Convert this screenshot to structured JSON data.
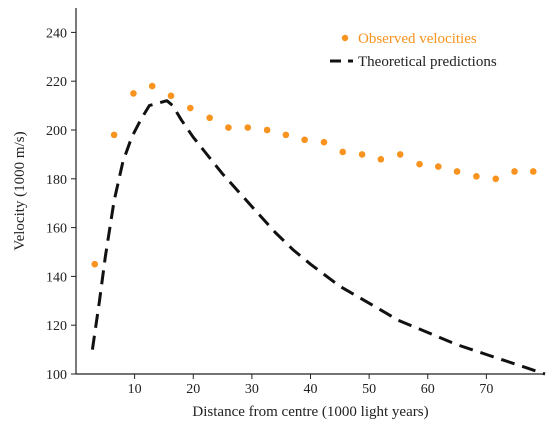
{
  "chart_data": {
    "type": "scatter",
    "xlabel": "Distance from centre (1000 light years)",
    "ylabel": "Velocity (1000 m/s)",
    "xlim": [
      0,
      80
    ],
    "ylim": [
      100,
      250
    ],
    "xticks": [
      10,
      20,
      30,
      40,
      50,
      60,
      70
    ],
    "yticks": [
      100,
      120,
      140,
      160,
      180,
      200,
      220,
      240
    ],
    "grid": false,
    "legend_position": "top-right",
    "series": [
      {
        "name": "Observed velocities",
        "kind": "scatter",
        "color": "#f7931e",
        "x": [
          3.2,
          6.5,
          9.8,
          13.0,
          16.2,
          19.5,
          22.8,
          26.0,
          29.3,
          32.6,
          35.8,
          39.0,
          42.3,
          45.5,
          48.8,
          52.0,
          55.3,
          58.6,
          61.8,
          65.0,
          68.3,
          71.6,
          74.8,
          78.0
        ],
        "y": [
          145,
          198,
          215,
          218,
          214,
          209,
          205,
          201,
          201,
          200,
          198,
          196,
          195,
          191,
          190,
          188,
          190,
          186,
          185,
          183,
          181,
          180,
          183,
          183
        ]
      },
      {
        "name": "Theoretical predictions",
        "kind": "line",
        "style": "dashed",
        "color": "#111111",
        "x": [
          2.8,
          4.0,
          5.0,
          6.5,
          8.0,
          9.5,
          11.0,
          12.5,
          14.0,
          15.5,
          16.5,
          18.0,
          20.0,
          22.0,
          25.0,
          28.0,
          31.0,
          34.0,
          37.0,
          40.0,
          45.0,
          50.0,
          55.0,
          60.0,
          65.0,
          70.0,
          75.0,
          80.0
        ],
        "y": [
          110,
          130,
          148,
          171,
          187,
          197,
          204,
          210,
          211,
          212,
          210,
          204,
          197,
          191,
          182,
          174,
          166,
          158,
          151,
          145,
          136,
          129,
          122,
          117,
          112,
          108,
          104,
          100
        ]
      }
    ]
  }
}
